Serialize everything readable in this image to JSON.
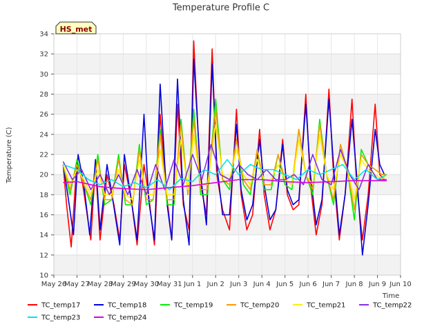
{
  "chart_data": {
    "type": "line",
    "title": "Temperature Profile C",
    "xlabel": "Time",
    "ylabel": "Temperature (C)",
    "badge": "HS_met",
    "ylim": [
      10,
      34
    ],
    "yticks": [
      10,
      12,
      14,
      16,
      18,
      20,
      22,
      24,
      26,
      28,
      30,
      32,
      34
    ],
    "xlim": [
      0,
      15
    ],
    "x_tick_labels": [
      "May 26",
      "May 27",
      "May 28",
      "May 29",
      "May 30",
      "May 31",
      "Jun 1",
      "Jun 2",
      "Jun 3",
      "Jun 4",
      "Jun 5",
      "Jun 6",
      "Jun 7",
      "Jun 8",
      "Jun 9",
      "Jun 10"
    ],
    "grid": true,
    "legend_placement": "bottom",
    "daily_resolution_note": "values are daily approximate max/min, x measured in days from May 26",
    "series": [
      {
        "name": "TC_temp17",
        "color": "#ff0000",
        "x": [
          0.4,
          0.55,
          0.75,
          1.0,
          1.25,
          1.6,
          1.8,
          2.0,
          2.3,
          2.6,
          2.85,
          3.05,
          3.35,
          3.6,
          3.9,
          4.1,
          4.35,
          4.6,
          4.9,
          5.1,
          5.35,
          5.6,
          5.85,
          6.05,
          6.35,
          6.6,
          6.85,
          7.05,
          7.3,
          7.6,
          7.9,
          8.1,
          8.35,
          8.6,
          8.9,
          9.1,
          9.35,
          9.6,
          9.9,
          10.1,
          10.35,
          10.6,
          10.9,
          11.1,
          11.35,
          11.6,
          11.9,
          12.1,
          12.35,
          12.6,
          12.9,
          13.1,
          13.35,
          13.6,
          13.9,
          14.1,
          14.3
        ],
        "y": [
          21.0,
          17.0,
          12.8,
          21.5,
          19.0,
          13.5,
          21.0,
          13.5,
          20.0,
          17.0,
          13.5,
          21.0,
          17.5,
          13.0,
          21.0,
          18.0,
          13.0,
          26.0,
          17.5,
          13.5,
          27.0,
          17.0,
          14.5,
          33.3,
          19.0,
          16.0,
          32.5,
          20.0,
          16.5,
          14.5,
          26.5,
          18.0,
          14.5,
          16.0,
          24.5,
          18.0,
          14.5,
          16.5,
          23.5,
          18.0,
          16.5,
          17.0,
          28.0,
          19.0,
          14.0,
          17.0,
          28.5,
          20.0,
          13.5,
          18.0,
          27.5,
          19.0,
          13.5,
          18.0,
          27.0,
          20.0,
          19.5
        ]
      },
      {
        "name": "TC_temp18",
        "color": "#0000dd",
        "x": [
          0.4,
          0.6,
          0.85,
          1.05,
          1.3,
          1.55,
          1.8,
          2.0,
          2.3,
          2.55,
          2.85,
          3.05,
          3.35,
          3.6,
          3.9,
          4.1,
          4.35,
          4.6,
          4.9,
          5.1,
          5.35,
          5.6,
          5.85,
          6.05,
          6.35,
          6.6,
          6.85,
          7.05,
          7.3,
          7.6,
          7.9,
          8.1,
          8.35,
          8.6,
          8.9,
          9.1,
          9.35,
          9.6,
          9.9,
          10.1,
          10.35,
          10.6,
          10.9,
          11.1,
          11.35,
          11.6,
          11.9,
          12.1,
          12.35,
          12.6,
          12.9,
          13.1,
          13.35,
          13.6,
          13.9,
          14.1,
          14.3
        ],
        "y": [
          21.0,
          18.0,
          14.0,
          22.0,
          19.0,
          14.0,
          21.5,
          14.5,
          21.0,
          17.5,
          13.0,
          22.0,
          17.5,
          13.5,
          26.0,
          17.5,
          13.5,
          29.0,
          17.0,
          13.5,
          29.5,
          17.5,
          13.0,
          31.5,
          20.0,
          15.0,
          31.0,
          21.0,
          16.0,
          16.0,
          25.0,
          18.5,
          15.5,
          17.0,
          23.5,
          19.0,
          15.5,
          16.5,
          23.0,
          18.5,
          17.0,
          17.5,
          27.0,
          20.0,
          15.0,
          17.5,
          27.5,
          21.0,
          14.0,
          18.0,
          25.5,
          20.0,
          12.0,
          17.0,
          24.5,
          21.0,
          20.0
        ]
      },
      {
        "name": "TC_temp19",
        "color": "#00ee00",
        "x": [
          0.4,
          0.7,
          1.0,
          1.3,
          1.6,
          1.9,
          2.2,
          2.5,
          2.8,
          3.1,
          3.4,
          3.7,
          4.0,
          4.3,
          4.6,
          4.9,
          5.2,
          5.5,
          5.8,
          6.05,
          6.35,
          6.65,
          7.0,
          7.3,
          7.6,
          7.9,
          8.2,
          8.5,
          8.8,
          9.1,
          9.4,
          9.7,
          10.0,
          10.3,
          10.6,
          10.9,
          11.2,
          11.5,
          11.8,
          12.1,
          12.4,
          12.7,
          13.0,
          13.3,
          13.6,
          13.9,
          14.2,
          14.4
        ],
        "y": [
          21.0,
          18.0,
          21.5,
          19.0,
          17.0,
          22.0,
          17.0,
          17.5,
          22.0,
          17.0,
          17.0,
          23.0,
          17.0,
          17.5,
          24.5,
          17.0,
          17.0,
          25.5,
          18.0,
          26.5,
          18.0,
          18.0,
          27.5,
          19.5,
          18.5,
          23.5,
          19.0,
          18.0,
          22.5,
          18.5,
          18.5,
          22.0,
          19.0,
          18.5,
          24.5,
          20.0,
          18.0,
          25.5,
          20.0,
          17.0,
          23.0,
          20.5,
          15.5,
          22.5,
          21.0,
          20.5,
          20.0,
          20.0
        ]
      },
      {
        "name": "TC_temp20",
        "color": "#ff9900",
        "x": [
          0.4,
          0.7,
          1.0,
          1.3,
          1.6,
          1.9,
          2.2,
          2.5,
          2.8,
          3.1,
          3.4,
          3.7,
          4.0,
          4.3,
          4.6,
          4.9,
          5.2,
          5.5,
          5.8,
          6.05,
          6.35,
          6.65,
          7.0,
          7.3,
          7.6,
          7.9,
          8.2,
          8.5,
          8.8,
          9.1,
          9.4,
          9.7,
          10.0,
          10.3,
          10.6,
          10.9,
          11.2,
          11.5,
          11.8,
          12.1,
          12.4,
          12.7,
          13.0,
          13.3,
          13.6,
          13.9,
          14.2,
          14.4
        ],
        "y": [
          21.0,
          18.5,
          21.0,
          19.0,
          17.5,
          21.5,
          17.5,
          17.5,
          21.5,
          17.5,
          17.0,
          22.5,
          17.5,
          17.5,
          24.0,
          17.5,
          17.5,
          25.0,
          18.0,
          25.5,
          18.5,
          18.5,
          26.5,
          19.5,
          19.0,
          23.5,
          19.5,
          18.5,
          22.5,
          19.0,
          19.0,
          22.0,
          19.5,
          19.0,
          24.5,
          20.0,
          18.5,
          25.0,
          20.0,
          17.5,
          23.0,
          20.5,
          16.5,
          22.0,
          21.0,
          20.5,
          20.0,
          20.0
        ]
      },
      {
        "name": "TC_temp21",
        "color": "#ffee00",
        "x": [
          0.4,
          0.7,
          1.0,
          1.3,
          1.6,
          1.9,
          2.2,
          2.5,
          2.8,
          3.1,
          3.4,
          3.7,
          4.0,
          4.3,
          4.6,
          4.9,
          5.2,
          5.5,
          5.8,
          6.05,
          6.35,
          6.65,
          7.0,
          7.3,
          7.6,
          7.9,
          8.2,
          8.5,
          8.8,
          9.1,
          9.4,
          9.7,
          10.0,
          10.3,
          10.6,
          10.9,
          11.2,
          11.5,
          11.8,
          12.1,
          12.4,
          12.7,
          13.0,
          13.3,
          13.6,
          13.9,
          14.2,
          14.4
        ],
        "y": [
          21.0,
          19.0,
          20.5,
          19.5,
          18.0,
          20.5,
          18.0,
          18.0,
          20.5,
          18.0,
          17.5,
          21.5,
          18.0,
          18.0,
          22.5,
          18.0,
          18.0,
          23.5,
          18.5,
          24.0,
          19.0,
          19.0,
          25.0,
          20.0,
          19.5,
          22.5,
          20.0,
          19.0,
          21.5,
          19.5,
          19.5,
          21.0,
          19.5,
          19.0,
          23.5,
          20.0,
          19.0,
          24.0,
          20.0,
          18.5,
          22.0,
          20.5,
          17.5,
          21.5,
          20.5,
          20.0,
          19.5,
          20.0
        ]
      },
      {
        "name": "TC_temp22",
        "color": "#8a2be2",
        "x": [
          0.4,
          0.8,
          1.2,
          1.6,
          2.0,
          2.4,
          2.8,
          3.2,
          3.6,
          4.0,
          4.4,
          4.8,
          5.2,
          5.6,
          6.0,
          6.4,
          6.8,
          7.2,
          7.6,
          8.0,
          8.4,
          8.8,
          9.2,
          9.6,
          10.0,
          10.4,
          10.8,
          11.2,
          11.6,
          12.0,
          12.4,
          12.8,
          13.2,
          13.6,
          14.0,
          14.4
        ],
        "y": [
          21.3,
          19.5,
          20.5,
          18.5,
          20.0,
          18.0,
          20.0,
          18.0,
          20.5,
          18.0,
          21.0,
          18.5,
          21.5,
          19.0,
          22.0,
          19.5,
          23.0,
          20.0,
          19.5,
          21.0,
          20.0,
          19.5,
          20.5,
          19.5,
          19.5,
          20.0,
          19.0,
          22.0,
          19.5,
          19.0,
          22.5,
          20.0,
          18.5,
          21.0,
          19.5,
          19.5
        ]
      },
      {
        "name": "TC_temp23",
        "color": "#00e5e5",
        "x": [
          0.4,
          1.0,
          1.5,
          2.0,
          2.5,
          3.0,
          3.5,
          4.0,
          4.5,
          5.0,
          5.5,
          6.0,
          6.5,
          7.0,
          7.5,
          8.0,
          8.5,
          9.0,
          9.5,
          10.0,
          10.5,
          11.0,
          11.5,
          12.0,
          12.5,
          13.0,
          13.5,
          14.0,
          14.4
        ],
        "y": [
          21.0,
          20.5,
          19.5,
          19.0,
          19.5,
          18.8,
          19.2,
          18.7,
          19.5,
          18.5,
          19.6,
          19.3,
          20.5,
          20.0,
          21.5,
          20.0,
          21.0,
          20.5,
          20.5,
          20.0,
          19.5,
          20.5,
          20.0,
          20.5,
          21.0,
          19.5,
          20.5,
          19.5,
          20.0
        ]
      },
      {
        "name": "TC_temp24",
        "color": "#dd00dd",
        "x": [
          0.4,
          1.0,
          2.0,
          3.0,
          4.0,
          5.0,
          6.0,
          7.0,
          8.0,
          9.0,
          10.0,
          11.0,
          12.0,
          13.0,
          14.0,
          14.4
        ],
        "y": [
          19.2,
          19.3,
          18.8,
          18.6,
          18.5,
          18.7,
          18.9,
          19.2,
          19.5,
          19.5,
          19.3,
          19.2,
          19.3,
          19.4,
          19.4,
          19.4
        ]
      }
    ]
  }
}
